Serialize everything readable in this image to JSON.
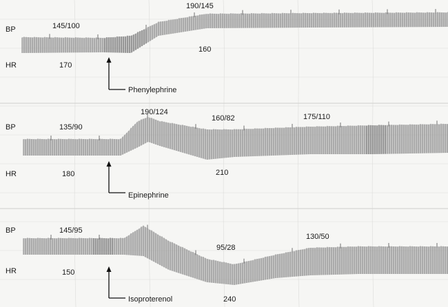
{
  "chart_data": [
    {
      "type": "line",
      "drug": "Phenylephrine",
      "series": [
        {
          "name": "BP",
          "points": [
            [
              0,
              "145/100"
            ],
            [
              1,
              "190/145"
            ]
          ]
        },
        {
          "name": "HR",
          "points": [
            [
              0,
              170
            ],
            [
              1,
              160
            ]
          ]
        }
      ],
      "labels": {
        "bp_label": "BP",
        "hr_label": "HR",
        "bp_before": "145/100",
        "bp_after": "190/145",
        "hr_before": "170",
        "hr_after": "160",
        "drug": "Phenylephrine"
      }
    },
    {
      "type": "line",
      "drug": "Epinephrine",
      "series": [
        {
          "name": "BP",
          "points": [
            [
              0,
              "135/90"
            ],
            [
              1,
              "190/124"
            ],
            [
              2,
              "160/82"
            ],
            [
              3,
              "175/110"
            ]
          ]
        },
        {
          "name": "HR",
          "points": [
            [
              0,
              180
            ],
            [
              1,
              210
            ]
          ]
        }
      ],
      "labels": {
        "bp_label": "BP",
        "hr_label": "HR",
        "bp_before": "135/90",
        "bp_peak": "190/124",
        "bp_mid": "160/82",
        "bp_after": "175/110",
        "hr_before": "180",
        "hr_after": "210",
        "drug": "Epinephrine"
      }
    },
    {
      "type": "line",
      "drug": "Isoproterenol",
      "series": [
        {
          "name": "BP",
          "points": [
            [
              0,
              "145/95"
            ],
            [
              1,
              "95/28"
            ],
            [
              2,
              "130/50"
            ]
          ]
        },
        {
          "name": "HR",
          "points": [
            [
              0,
              150
            ],
            [
              1,
              240
            ]
          ]
        }
      ],
      "labels": {
        "bp_label": "BP",
        "hr_label": "HR",
        "bp_before": "145/95",
        "bp_trough": "95/28",
        "bp_after": "130/50",
        "hr_before": "150",
        "hr_after": "240",
        "drug": "Isoproterenol"
      }
    }
  ],
  "colors": {
    "paper": "#f6f6f4",
    "trace": "#8f8f8f",
    "trace_dark": "#6a6a6a",
    "grid": "#dcdcda",
    "text": "#1a1a1a"
  }
}
